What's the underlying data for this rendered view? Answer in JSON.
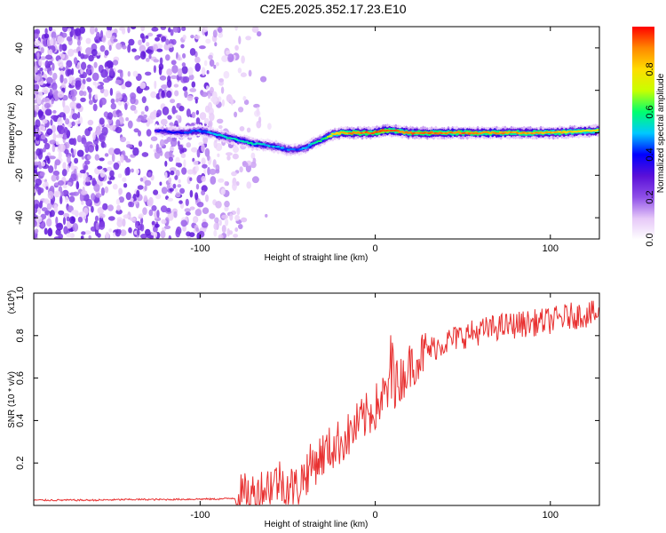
{
  "title": "C2E5.2025.352.17.23.E10",
  "chart_data": [
    {
      "type": "heatmap",
      "xlabel": "Height of straight line (km)",
      "ylabel": "Frequency (Hz)",
      "xlim": [
        -195,
        128
      ],
      "ylim": [
        -50,
        50
      ],
      "xticks": [
        -100,
        0,
        100
      ],
      "yticks": [
        -40,
        -20,
        0,
        20,
        40
      ],
      "colorbar": {
        "label": "Normalized spectral amplitude",
        "range": [
          0,
          1
        ],
        "ticks": [
          "0.0",
          "0.2",
          "0.4",
          "0.6",
          "0.8"
        ],
        "colormap": [
          "#ffffff",
          "#e6c8f8",
          "#8f4fe8",
          "#5a10d8",
          "#0000ff",
          "#00c8ff",
          "#00ff6e",
          "#c8ff00",
          "#ffdd00",
          "#ff8800",
          "#ff0000"
        ]
      },
      "ridge": {
        "x": [
          -125,
          -110,
          -100,
          -90,
          -80,
          -70,
          -60,
          -50,
          -45,
          -40,
          -30,
          -25,
          -20,
          -10,
          0,
          5,
          10,
          20,
          40,
          60,
          80,
          100,
          128
        ],
        "freq": [
          1,
          0,
          1,
          -1,
          -3,
          -5,
          -6,
          -8,
          -8,
          -7,
          -3,
          -1,
          0,
          0,
          0,
          1,
          1,
          0,
          0,
          0,
          0,
          0,
          1
        ],
        "amplitude": [
          0.35,
          0.4,
          0.45,
          0.5,
          0.55,
          0.55,
          0.5,
          0.45,
          0.45,
          0.5,
          0.6,
          0.75,
          0.85,
          0.9,
          0.92,
          0.95,
          0.9,
          0.9,
          0.9,
          0.9,
          0.88,
          0.85,
          0.8
        ]
      }
    },
    {
      "type": "line",
      "xlabel": "Height of straight line (km)",
      "ylabel": "SNR (10 * v/v)",
      "y_multiplier": "(x10",
      "y_multiplier_exp": "4",
      "y_multiplier_close": ")",
      "xlim": [
        -195,
        128
      ],
      "ylim": [
        0,
        1.0
      ],
      "xticks": [
        -100,
        0,
        100
      ],
      "yticks": [
        "0.2",
        "0.4",
        "0.6",
        "0.8",
        "1.0"
      ],
      "color": "#e83030",
      "series": [
        {
          "name": "SNR",
          "x": [
            -195,
            -180,
            -160,
            -140,
            -120,
            -100,
            -90,
            -80,
            -75,
            -70,
            -65,
            -60,
            -55,
            -50,
            -45,
            -40,
            -35,
            -30,
            -25,
            -20,
            -15,
            -10,
            -5,
            0,
            5,
            10,
            15,
            20,
            25,
            30,
            40,
            50,
            60,
            70,
            80,
            90,
            100,
            110,
            120,
            128
          ],
          "y": [
            0.025,
            0.025,
            0.025,
            0.028,
            0.028,
            0.03,
            0.03,
            0.035,
            0.04,
            0.05,
            0.07,
            0.1,
            0.12,
            0.09,
            0.08,
            0.15,
            0.2,
            0.24,
            0.27,
            0.3,
            0.33,
            0.38,
            0.42,
            0.46,
            0.52,
            0.56,
            0.6,
            0.66,
            0.7,
            0.73,
            0.77,
            0.8,
            0.82,
            0.84,
            0.85,
            0.86,
            0.87,
            0.89,
            0.9,
            0.9
          ]
        }
      ]
    }
  ]
}
